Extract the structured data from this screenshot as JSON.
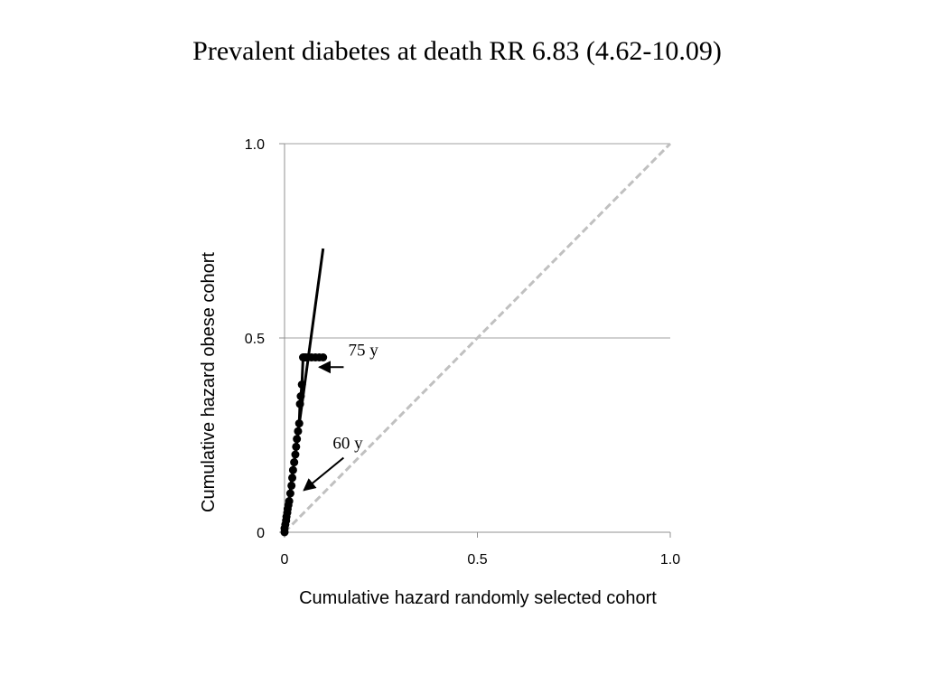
{
  "title": "Prevalent diabetes at death RR 6.83 (4.62-10.09)",
  "chart_data": {
    "type": "line",
    "title": "Prevalent diabetes at death RR 6.83 (4.62-10.09)",
    "xlabel": "Cumulative hazard randomly selected cohort",
    "ylabel": "Cumulative hazard obese cohort",
    "xlim": [
      0,
      1.0
    ],
    "ylim": [
      0,
      1.0
    ],
    "x_ticks": [
      {
        "value": 0,
        "label": "0"
      },
      {
        "value": 0.5,
        "label": "0.5"
      },
      {
        "value": 1.0,
        "label": "1.0"
      }
    ],
    "y_ticks": [
      {
        "value": 0,
        "label": "0"
      },
      {
        "value": 0.5,
        "label": "0.5"
      },
      {
        "value": 1.0,
        "label": "1.0"
      }
    ],
    "grid": "horizontal",
    "legend": "none",
    "series": [
      {
        "style": "dashed",
        "color": "#c0c0c0",
        "x": [
          0,
          1.0
        ],
        "y": [
          0,
          1.0
        ]
      },
      {
        "style": "markers",
        "color": "#000000",
        "x": [
          0.0,
          0.0,
          0.002,
          0.004,
          0.005,
          0.007,
          0.008,
          0.01,
          0.012,
          0.015,
          0.018,
          0.02,
          0.022,
          0.025,
          0.028,
          0.03,
          0.032,
          0.035,
          0.038,
          0.04,
          0.042,
          0.045,
          0.048,
          0.05,
          0.052,
          0.055,
          0.06,
          0.07,
          0.08,
          0.09,
          0.1
        ],
        "y": [
          0.0,
          0.01,
          0.02,
          0.03,
          0.04,
          0.05,
          0.06,
          0.07,
          0.08,
          0.1,
          0.12,
          0.14,
          0.16,
          0.18,
          0.2,
          0.22,
          0.24,
          0.26,
          0.28,
          0.33,
          0.35,
          0.38,
          0.45,
          0.45,
          0.45,
          0.45,
          0.45,
          0.45,
          0.45,
          0.45,
          0.45
        ]
      },
      {
        "style": "solid",
        "color": "#000000",
        "x": [
          0.0,
          0.1
        ],
        "y": [
          0.0,
          0.73
        ]
      }
    ],
    "annotations": [
      {
        "text": "75 y",
        "x": 0.165,
        "y": 0.455,
        "arrow_to": [
          0.09,
          0.425
        ]
      },
      {
        "text": "60 y",
        "x": 0.125,
        "y": 0.215,
        "arrow_to": [
          0.05,
          0.108
        ]
      }
    ]
  }
}
